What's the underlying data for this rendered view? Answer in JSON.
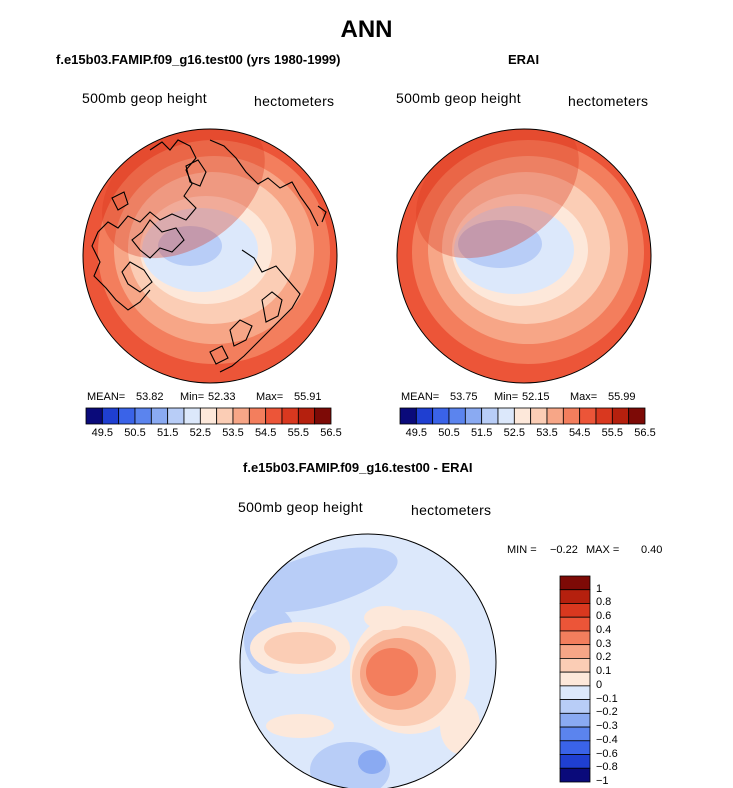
{
  "main_title": "ANN",
  "chart_data": [
    {
      "type": "heatmap",
      "projection": "polar-stereographic-north",
      "title": "f.e15b03.FAMIP.f09_g16.test00 (yrs 1980-1999)",
      "variable_label": "500mb geop height",
      "units_label": "hectometers",
      "stats": {
        "mean_label": "MEAN=",
        "mean": "53.82",
        "min_label": "Min=",
        "min": "52.33",
        "max_label": "Max=",
        "max": "55.91"
      },
      "colorbar_ticks": [
        "49.5",
        "50.5",
        "51.5",
        "52.5",
        "53.5",
        "54.5",
        "55.5",
        "56.5"
      ]
    },
    {
      "type": "heatmap",
      "projection": "polar-stereographic-north",
      "title": "ERAI",
      "variable_label": "500mb geop height",
      "units_label": "hectometers",
      "stats": {
        "mean_label": "MEAN=",
        "mean": "53.75",
        "min_label": "Min=",
        "min": "52.15",
        "max_label": "Max=",
        "max": "55.99"
      },
      "colorbar_ticks": [
        "49.5",
        "50.5",
        "51.5",
        "52.5",
        "53.5",
        "54.5",
        "55.5",
        "56.5"
      ]
    },
    {
      "type": "heatmap",
      "projection": "polar-stereographic-north",
      "title": "f.e15b03.FAMIP.f09_g16.test00 - ERAI",
      "variable_label": "500mb geop height",
      "units_label": "hectometers",
      "stats": {
        "min_label": "MIN =",
        "min": "−0.22",
        "max_label": "MAX =",
        "max": "0.40"
      },
      "colorbar_ticks": [
        "1",
        "0.8",
        "0.6",
        "0.4",
        "0.3",
        "0.2",
        "0.1",
        "0",
        "−0.1",
        "−0.2",
        "−0.3",
        "−0.4",
        "−0.6",
        "−0.8",
        "−1"
      ]
    }
  ],
  "colors": {
    "seq_palette": [
      "#0a0a7a",
      "#1f3fd1",
      "#3a63e8",
      "#5b84ee",
      "#8aaaf2",
      "#b8cdf7",
      "#dce8fb",
      "#fde8da",
      "#fbcdb5",
      "#f7a687",
      "#f37e5d",
      "#ec5538",
      "#d9381f",
      "#b5200e",
      "#7d0a06"
    ],
    "diff_palette": [
      "#7d0a06",
      "#b5200e",
      "#d9381f",
      "#ec5538",
      "#f37e5d",
      "#f7a687",
      "#fbcdb5",
      "#fde8da",
      "#dce8fb",
      "#b8cdf7",
      "#8aaaf2",
      "#5b84ee",
      "#3a63e8",
      "#1f3fd1",
      "#0a0a7a"
    ],
    "coastline": "#000000"
  }
}
